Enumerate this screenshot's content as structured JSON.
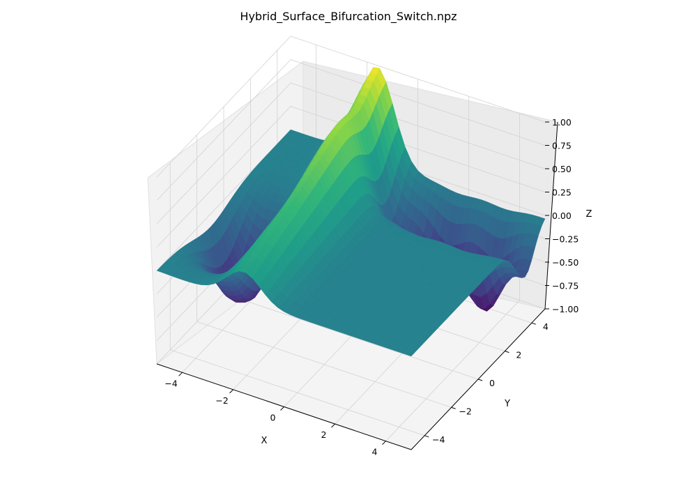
{
  "chart_data": {
    "type": "surface3d",
    "title": "Hybrid_Surface_Bifurcation_Switch.npz",
    "xlabel": "X",
    "ylabel": "Y",
    "zlabel": "Z",
    "xlim": [
      -5,
      5
    ],
    "ylim": [
      -5,
      5
    ],
    "zlim": [
      -1,
      1
    ],
    "x_ticks": [
      "−4",
      "−2",
      "0",
      "2",
      "4"
    ],
    "y_ticks": [
      "−4",
      "−2",
      "0",
      "2",
      "4"
    ],
    "z_ticks": [
      "−1.00",
      "−0.75",
      "−0.50",
      "−0.25",
      "0.00",
      "0.25",
      "0.50",
      "0.75",
      "1.00"
    ],
    "grid": true,
    "colormap": "viridis",
    "surface_description": "Ridge along y near x=-2 rising to z=1.0; plateau near z=0 on both sides; deep wells reaching z=-1 near x=-4..-3 and near y=3..4 on the right side."
  }
}
